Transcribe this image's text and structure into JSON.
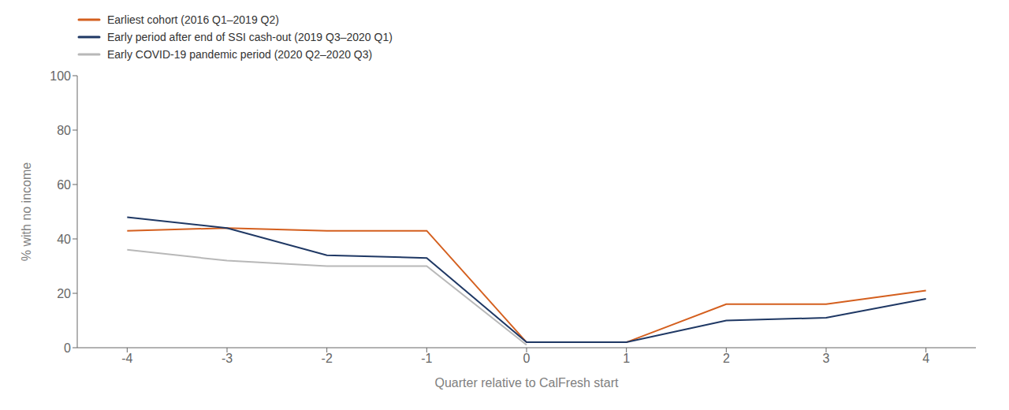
{
  "chart_data": {
    "type": "line",
    "x": [
      -4,
      -3,
      -2,
      -1,
      0,
      1,
      2,
      3,
      4
    ],
    "series": [
      {
        "name": "Earliest cohort (2016 Q1–2019 Q2)",
        "color": "#d45f1e",
        "values": [
          43,
          44,
          43,
          43,
          2,
          2,
          16,
          16,
          21
        ]
      },
      {
        "name": "Early period after end of SSI cash-out (2019 Q3–2020 Q1)",
        "color": "#1f3864",
        "values": [
          48,
          44,
          34,
          33,
          2,
          2,
          10,
          11,
          18
        ]
      },
      {
        "name": "Early COVID-19 pandemic period (2020 Q2–2020 Q3)",
        "color": "#b8b8b8",
        "values": [
          36,
          32,
          30,
          30,
          1,
          null,
          null,
          null,
          null
        ]
      }
    ],
    "xlabel": "Quarter relative to CalFresh start",
    "ylabel": "% with no income",
    "xlim": [
      -4.5,
      4.5
    ],
    "xticks": [
      -4,
      -3,
      -2,
      -1,
      0,
      1,
      2,
      3,
      4
    ],
    "ylim": [
      0,
      100
    ],
    "yticks": [
      0,
      20,
      40,
      60,
      80,
      100
    ],
    "grid": false,
    "legend": "upper left"
  }
}
